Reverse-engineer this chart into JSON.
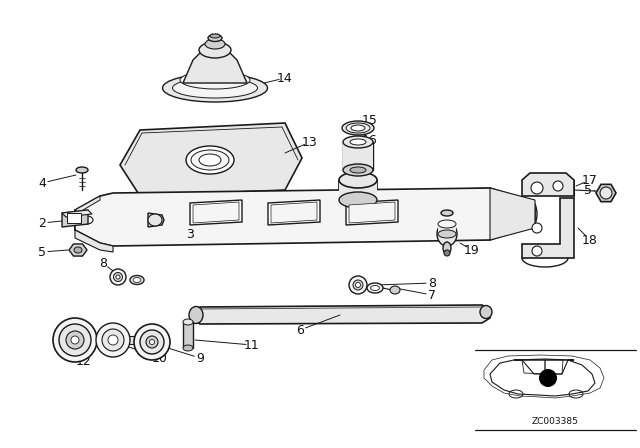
{
  "bg_color": "#ffffff",
  "line_color": "#1a1a1a",
  "fill_light": "#f5f5f5",
  "fill_mid": "#e8e8e8",
  "fill_dark": "#d0d0d0",
  "label_fontsize": 9,
  "small_fontsize": 7
}
